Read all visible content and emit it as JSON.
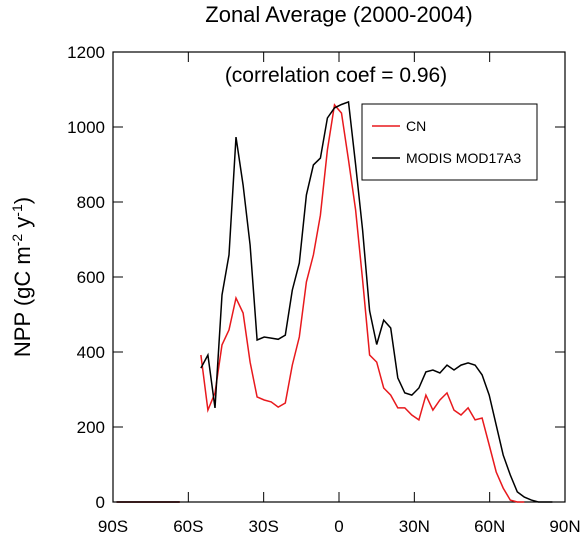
{
  "chart_data": {
    "type": "line",
    "title": "Zonal Average (2000-2004)",
    "annotation": "(correlation coef =  0.96)",
    "ylabel_parts": [
      "NPP (gC m",
      "-2",
      " y",
      "-1",
      ")"
    ],
    "x": [
      -88.6,
      -85.8,
      -83.0,
      -80.2,
      -77.4,
      -74.6,
      -71.8,
      -69.0,
      -66.2,
      -63.4,
      -60.6,
      -57.8,
      -55.0,
      -52.2,
      -49.4,
      -46.6,
      -43.8,
      -41.0,
      -38.2,
      -35.4,
      -32.6,
      -29.8,
      -27.0,
      -24.2,
      -21.4,
      -18.6,
      -15.8,
      -13.0,
      -10.2,
      -7.4,
      -4.6,
      -1.8,
      1.0,
      3.8,
      6.6,
      9.4,
      12.2,
      15.0,
      17.8,
      20.6,
      23.4,
      26.2,
      29.0,
      31.8,
      34.6,
      37.4,
      40.2,
      43.0,
      45.8,
      48.6,
      51.4,
      54.2,
      57.0,
      59.8,
      62.6,
      65.4,
      68.2,
      71.0,
      73.8,
      76.6,
      79.4,
      82.2,
      85.0,
      87.8
    ],
    "series": [
      {
        "name": "CN",
        "color": "#e8191d",
        "values": [
          0,
          0,
          0,
          0,
          0,
          0,
          0,
          0,
          0,
          0,
          null,
          null,
          392,
          245,
          291,
          419,
          459,
          544,
          504,
          373,
          280,
          272,
          267,
          253,
          264,
          365,
          440,
          587,
          659,
          765,
          939,
          1059,
          1037,
          912,
          779,
          592,
          392,
          373,
          304,
          285,
          251,
          251,
          232,
          219,
          285,
          245,
          272,
          291,
          245,
          232,
          251,
          219,
          224,
          152,
          80,
          37,
          5,
          0,
          0,
          null,
          null,
          null,
          null,
          null
        ]
      },
      {
        "name": "MODIS MOD17A3",
        "color": "#000000",
        "values": [
          0,
          0,
          0,
          0,
          0,
          0,
          0,
          0,
          0,
          0,
          null,
          null,
          357,
          392,
          251,
          552,
          659,
          973,
          845,
          685,
          432,
          440,
          437,
          434,
          445,
          565,
          637,
          819,
          899,
          917,
          1024,
          1051,
          1060,
          1067,
          900,
          725,
          510,
          420,
          485,
          464,
          331,
          291,
          285,
          304,
          347,
          352,
          344,
          365,
          352,
          365,
          371,
          365,
          339,
          285,
          205,
          125,
          72,
          27,
          13,
          5,
          0,
          0,
          0,
          null
        ]
      }
    ],
    "xlim": [
      -90,
      90
    ],
    "xticks": [
      {
        "value": -90,
        "label": "90S"
      },
      {
        "value": -60,
        "label": "60S"
      },
      {
        "value": -30,
        "label": "30S"
      },
      0,
      {
        "value": 30,
        "label": "30N"
      },
      {
        "value": 60,
        "label": "60N"
      },
      {
        "value": 90,
        "label": "90N"
      }
    ],
    "ylim": [
      0,
      1200
    ],
    "yticks": [
      0,
      200,
      400,
      600,
      800,
      1000,
      1200
    ],
    "legend": "upper right"
  }
}
